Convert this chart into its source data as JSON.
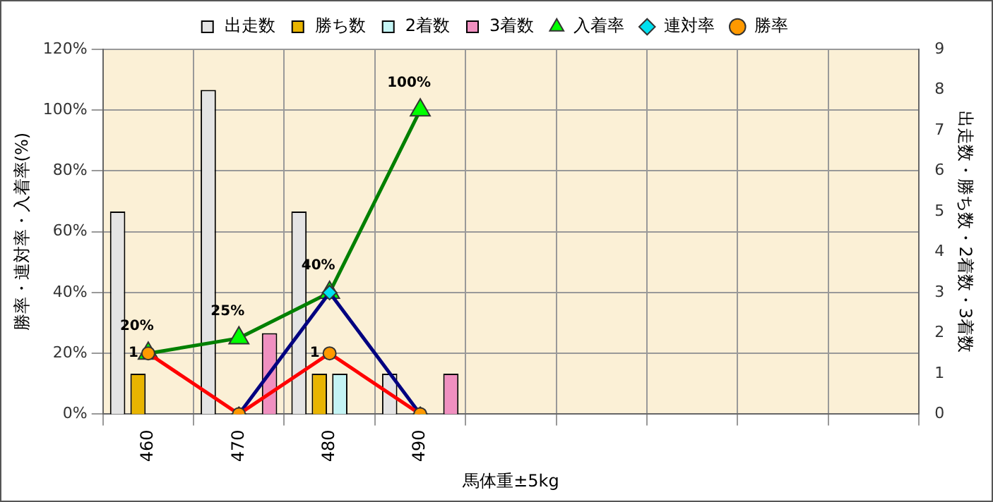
{
  "chart_data": {
    "type": "bar",
    "xlabel": "馬体重±5kg",
    "ylabel": "勝率・連対率・入着率(%)",
    "y2label": "出走数・勝ち数・2着数・3着数",
    "categories": [
      "460",
      "470",
      "480",
      "490",
      null,
      null,
      null,
      null,
      null
    ],
    "series": [
      {
        "name": "出走数",
        "axis": "y2",
        "color": "#e4e4e4",
        "values": [
          5,
          8,
          5,
          1,
          null,
          null,
          null,
          null,
          null
        ]
      },
      {
        "name": "勝ち数",
        "axis": "y2",
        "color": "#e8b400",
        "values": [
          1,
          null,
          1,
          null,
          null,
          null,
          null,
          null,
          null
        ]
      },
      {
        "name": "2着数",
        "axis": "y2",
        "color": "#c4f4f4",
        "values": [
          null,
          null,
          1,
          null,
          null,
          null,
          null,
          null,
          null
        ]
      },
      {
        "name": "3着数",
        "axis": "y2",
        "color": "#f090c0",
        "values": [
          null,
          2,
          null,
          1,
          null,
          null,
          null,
          null,
          null
        ]
      },
      {
        "name": "入着率",
        "type": "line",
        "color": "#008000",
        "marker": "triangle",
        "values": [
          20,
          25,
          40,
          100,
          null,
          null,
          null,
          null,
          null
        ],
        "value_labels": [
          "20%",
          "25%",
          "40%",
          "100%",
          null,
          null,
          null,
          null,
          null
        ]
      },
      {
        "name": "連対率",
        "type": "line",
        "color": "#000080",
        "marker": "diamond",
        "values": [
          null,
          0,
          40,
          0,
          null,
          null,
          null,
          null,
          null
        ]
      },
      {
        "name": "勝率",
        "type": "line",
        "color": "#ff0000",
        "marker": "circle",
        "values": [
          20,
          0,
          20,
          0,
          null,
          null,
          null,
          null,
          null
        ]
      }
    ],
    "annotations": [
      {
        "text": "1",
        "x": "460",
        "y": 20
      },
      {
        "text": "1",
        "x": "480",
        "y": 20
      }
    ],
    "ylim": [
      0,
      120
    ],
    "yticks": [
      {
        "value": 0,
        "label": "0%"
      },
      {
        "value": 20,
        "label": "20%"
      },
      {
        "value": 40,
        "label": "40%"
      },
      {
        "value": 60,
        "label": "60%"
      },
      {
        "value": 80,
        "label": "80%"
      },
      {
        "value": 100,
        "label": "100%"
      },
      {
        "value": 120,
        "label": "120%"
      }
    ],
    "y2lim": [
      0,
      9
    ],
    "y2ticks": [
      0,
      1,
      2,
      3,
      4,
      5,
      6,
      7,
      8,
      9
    ],
    "grid": true,
    "legend": "top"
  }
}
